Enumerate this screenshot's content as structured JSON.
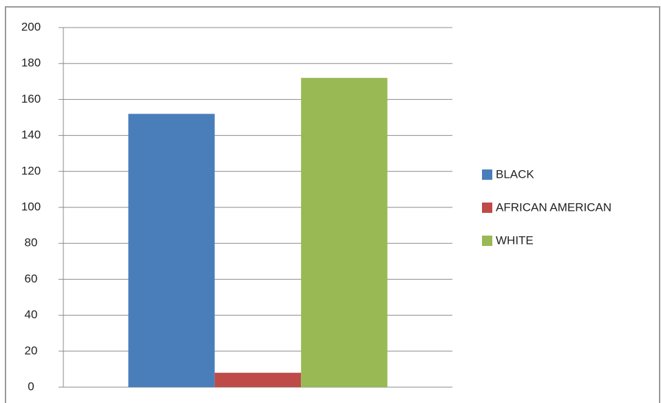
{
  "chart_data": {
    "type": "bar",
    "categories": [
      null
    ],
    "series": [
      {
        "name": "BLACK",
        "color": "#4a7ebb",
        "values": [
          152
        ]
      },
      {
        "name": "AFRICAN AMERICAN",
        "color": "#be4b48",
        "values": [
          8
        ]
      },
      {
        "name": "WHITE",
        "color": "#98b954",
        "values": [
          172
        ]
      }
    ],
    "ylim": [
      0,
      200
    ],
    "yticks": [
      0,
      20,
      40,
      60,
      80,
      100,
      120,
      140,
      160,
      180,
      200
    ],
    "grid": true,
    "legend": "right"
  }
}
